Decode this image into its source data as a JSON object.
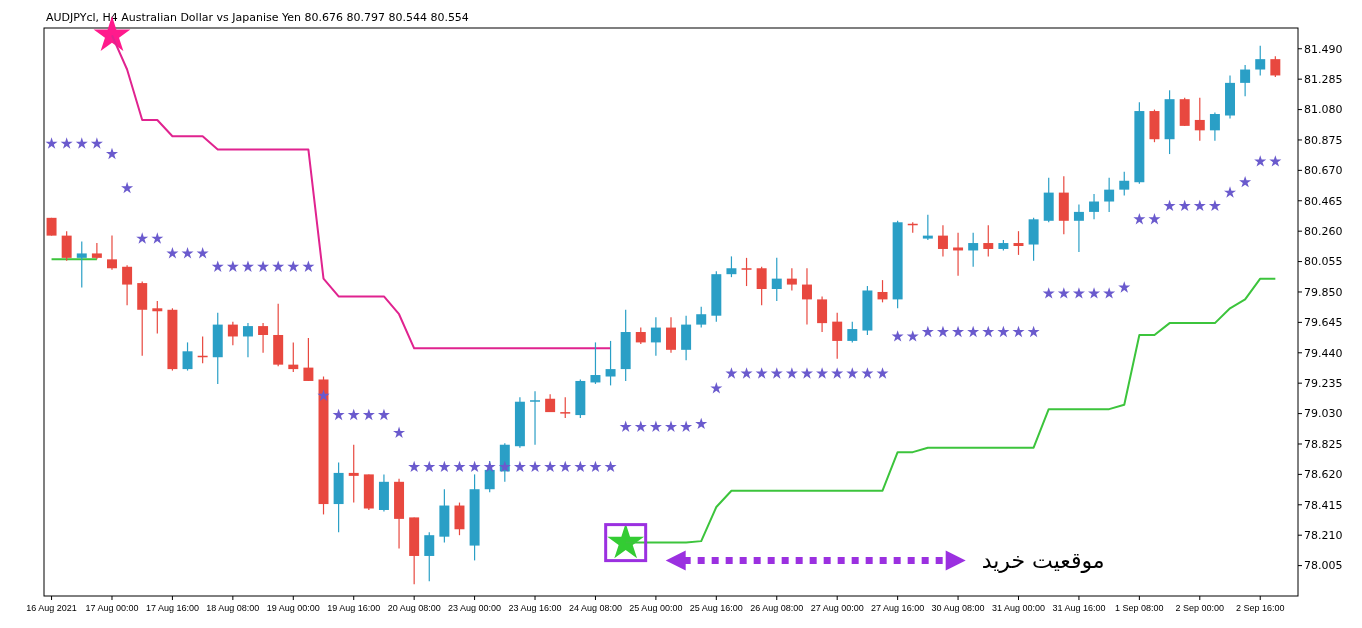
{
  "chart_data": {
    "type": "candlestick",
    "title": "AUDJPYcl, H4  Australian Dollar vs Japanise Yen  80.676 80.797 80.544 80.554",
    "annotations": [
      "موقعیت خرید"
    ],
    "categories": [
      "16 Aug 2021",
      null,
      null,
      null,
      "17 Aug 00:00",
      null,
      null,
      null,
      "17 Aug 16:00",
      null,
      null,
      null,
      "18 Aug 08:00",
      null,
      null,
      null,
      "19 Aug 00:00",
      null,
      null,
      null,
      "19 Aug 16:00",
      null,
      null,
      null,
      "20 Aug 08:00",
      null,
      null,
      null,
      "23 Aug 00:00",
      null,
      null,
      null,
      "23 Aug 16:00",
      null,
      null,
      null,
      "24 Aug 08:00",
      null,
      null,
      null,
      "25 Aug 00:00",
      null,
      null,
      null,
      "25 Aug 16:00",
      null,
      null,
      null,
      "26 Aug 08:00",
      null,
      null,
      null,
      "27 Aug 00:00",
      null,
      null,
      null,
      "27 Aug 16:00",
      null,
      null,
      null,
      "30 Aug 08:00",
      null,
      null,
      null,
      "31 Aug 00:00",
      null,
      null,
      null,
      "31 Aug 16:00",
      null,
      null,
      null,
      "1 Sep 08:00",
      null,
      null,
      null,
      "2 Sep 00:00",
      null,
      null,
      null,
      "2 Sep 16:00",
      null
    ],
    "ohlc": [
      [
        80.35,
        80.35,
        80.23,
        80.23
      ],
      [
        80.23,
        80.26,
        80.06,
        80.08
      ],
      [
        80.08,
        80.19,
        79.88,
        80.11
      ],
      [
        80.11,
        80.18,
        80.07,
        80.08
      ],
      [
        80.07,
        80.23,
        80.0,
        80.01
      ],
      [
        80.02,
        80.03,
        79.76,
        79.9
      ],
      [
        79.91,
        79.92,
        79.42,
        79.73
      ],
      [
        79.74,
        79.79,
        79.57,
        79.72
      ],
      [
        79.73,
        79.74,
        79.32,
        79.33
      ],
      [
        79.33,
        79.51,
        79.32,
        79.45
      ],
      [
        79.42,
        79.55,
        79.37,
        79.41
      ],
      [
        79.41,
        79.71,
        79.23,
        79.63
      ],
      [
        79.63,
        79.65,
        79.49,
        79.55
      ],
      [
        79.55,
        79.64,
        79.41,
        79.62
      ],
      [
        79.62,
        79.64,
        79.44,
        79.56
      ],
      [
        79.56,
        79.77,
        79.35,
        79.36
      ],
      [
        79.36,
        79.51,
        79.31,
        79.33
      ],
      [
        79.34,
        79.54,
        79.25,
        79.25
      ],
      [
        79.26,
        79.28,
        78.35,
        78.42
      ],
      [
        78.42,
        78.7,
        78.23,
        78.63
      ],
      [
        78.63,
        78.82,
        78.43,
        78.61
      ],
      [
        78.62,
        78.62,
        78.38,
        78.39
      ],
      [
        78.38,
        78.62,
        78.37,
        78.57
      ],
      [
        78.57,
        78.59,
        78.12,
        78.32
      ],
      [
        78.33,
        78.33,
        77.88,
        78.07
      ],
      [
        78.07,
        78.23,
        77.9,
        78.21
      ],
      [
        78.2,
        78.52,
        78.16,
        78.41
      ],
      [
        78.41,
        78.43,
        78.21,
        78.25
      ],
      [
        78.14,
        78.62,
        78.04,
        78.52
      ],
      [
        78.52,
        78.71,
        78.5,
        78.65
      ],
      [
        78.64,
        78.83,
        78.57,
        78.82
      ],
      [
        78.81,
        79.14,
        78.8,
        79.11
      ],
      [
        79.11,
        79.18,
        78.82,
        79.12
      ],
      [
        79.13,
        79.16,
        79.04,
        79.04
      ],
      [
        79.04,
        79.14,
        79.0,
        79.03
      ],
      [
        79.02,
        79.26,
        79.0,
        79.25
      ],
      [
        79.24,
        79.51,
        79.23,
        79.29
      ],
      [
        79.28,
        79.52,
        79.22,
        79.33
      ],
      [
        79.33,
        79.73,
        79.25,
        79.58
      ],
      [
        79.58,
        79.61,
        79.5,
        79.51
      ],
      [
        79.51,
        79.68,
        79.42,
        79.61
      ],
      [
        79.61,
        79.68,
        79.44,
        79.46
      ],
      [
        79.46,
        79.69,
        79.39,
        79.63
      ],
      [
        79.63,
        79.75,
        79.61,
        79.7
      ],
      [
        79.69,
        79.99,
        79.65,
        79.97
      ],
      [
        79.97,
        80.09,
        79.95,
        80.01
      ],
      [
        80.01,
        80.08,
        79.89,
        80.0
      ],
      [
        80.01,
        80.02,
        79.76,
        79.87
      ],
      [
        79.87,
        80.08,
        79.79,
        79.94
      ],
      [
        79.94,
        80.01,
        79.86,
        79.9
      ],
      [
        79.9,
        80.01,
        79.63,
        79.8
      ],
      [
        79.8,
        79.82,
        79.58,
        79.64
      ],
      [
        79.65,
        79.71,
        79.4,
        79.52
      ],
      [
        79.52,
        79.65,
        79.51,
        79.6
      ],
      [
        79.59,
        79.89,
        79.56,
        79.86
      ],
      [
        79.85,
        79.93,
        79.78,
        79.8
      ],
      [
        79.8,
        80.33,
        79.74,
        80.32
      ],
      [
        80.31,
        80.32,
        80.25,
        80.3
      ],
      [
        80.21,
        80.37,
        80.2,
        80.23
      ],
      [
        80.23,
        80.3,
        80.09,
        80.14
      ],
      [
        80.15,
        80.25,
        79.96,
        80.13
      ],
      [
        80.13,
        80.25,
        80.02,
        80.18
      ],
      [
        80.18,
        80.3,
        80.09,
        80.14
      ],
      [
        80.14,
        80.2,
        80.13,
        80.18
      ],
      [
        80.18,
        80.26,
        80.1,
        80.16
      ],
      [
        80.17,
        80.35,
        80.06,
        80.34
      ],
      [
        80.33,
        80.62,
        80.32,
        80.52
      ],
      [
        80.52,
        80.63,
        80.24,
        80.33
      ],
      [
        80.33,
        80.44,
        80.12,
        80.39
      ],
      [
        80.39,
        80.51,
        80.34,
        80.46
      ],
      [
        80.46,
        80.62,
        80.39,
        80.54
      ],
      [
        80.54,
        80.66,
        80.5,
        80.6
      ],
      [
        80.59,
        81.13,
        80.58,
        81.07
      ],
      [
        81.07,
        81.08,
        80.86,
        80.88
      ],
      [
        80.88,
        81.21,
        80.78,
        81.15
      ],
      [
        81.15,
        81.16,
        80.97,
        80.97
      ],
      [
        81.01,
        81.16,
        80.87,
        80.94
      ],
      [
        80.94,
        81.06,
        80.87,
        81.05
      ],
      [
        81.04,
        81.31,
        81.02,
        81.26
      ],
      [
        81.26,
        81.38,
        81.17,
        81.35
      ],
      [
        81.35,
        81.51,
        81.31,
        81.42
      ],
      [
        81.42,
        81.44,
        81.3,
        81.31
      ]
    ],
    "colors": [
      "#e8483f",
      "#e8483f",
      "#2a9fc6",
      "#e8483f",
      "#e8483f",
      "#e8483f",
      "#e8483f",
      "#e8483f",
      "#e8483f",
      "#2a9fc6",
      "#e8483f",
      "#2a9fc6",
      "#e8483f",
      "#2a9fc6",
      "#e8483f",
      "#e8483f",
      "#e8483f",
      "#e8483f",
      "#e8483f",
      "#2a9fc6",
      "#e8483f",
      "#e8483f",
      "#2a9fc6",
      "#e8483f",
      "#e8483f",
      "#2a9fc6",
      "#2a9fc6",
      "#e8483f",
      "#2a9fc6",
      "#2a9fc6",
      "#2a9fc6",
      "#2a9fc6",
      "#2a9fc6",
      "#e8483f",
      "#e8483f",
      "#2a9fc6",
      "#2a9fc6",
      "#2a9fc6",
      "#2a9fc6",
      "#e8483f",
      "#2a9fc6",
      "#e8483f",
      "#2a9fc6",
      "#2a9fc6",
      "#2a9fc6",
      "#2a9fc6",
      "#e8483f",
      "#e8483f",
      "#2a9fc6",
      "#e8483f",
      "#e8483f",
      "#e8483f",
      "#e8483f",
      "#2a9fc6",
      "#2a9fc6",
      "#e8483f",
      "#2a9fc6",
      "#e8483f",
      "#2a9fc6",
      "#e8483f",
      "#e8483f",
      "#2a9fc6",
      "#e8483f",
      "#2a9fc6",
      "#e8483f",
      "#2a9fc6",
      "#2a9fc6",
      "#e8483f",
      "#2a9fc6",
      "#2a9fc6",
      "#2a9fc6",
      "#2a9fc6",
      "#2a9fc6",
      "#e8483f",
      "#2a9fc6",
      "#e8483f",
      "#e8483f",
      "#2a9fc6",
      "#2a9fc6",
      "#2a9fc6",
      "#2a9fc6",
      "#e8483f"
    ],
    "series": [
      {
        "type": "line",
        "color": "#e0238f",
        "values": [
          null,
          null,
          null,
          null,
          81.58,
          81.35,
          81.01,
          81.01,
          80.9,
          80.9,
          80.9,
          80.81,
          80.81,
          80.81,
          80.81,
          80.81,
          80.81,
          80.81,
          79.94,
          79.82,
          79.82,
          79.82,
          79.82,
          79.7,
          79.47,
          79.47,
          79.47,
          79.47,
          79.47,
          79.47,
          79.47,
          79.47,
          79.47,
          79.47,
          79.47,
          79.47,
          79.47,
          79.47,
          null,
          null,
          null,
          null,
          null,
          null,
          null,
          null,
          null,
          null,
          null,
          null,
          null,
          null,
          null,
          null,
          null,
          null,
          null,
          null,
          null,
          null,
          null,
          null,
          null,
          null,
          null,
          null,
          null,
          null,
          null,
          null,
          null,
          null,
          null,
          null,
          null,
          null,
          null,
          null,
          null,
          null,
          null,
          null
        ]
      },
      {
        "type": "line",
        "color": "#3cc43c",
        "values": [
          80.07,
          80.07,
          80.07,
          80.07,
          null,
          null,
          null,
          null,
          null,
          null,
          null,
          null,
          null,
          null,
          null,
          null,
          null,
          null,
          null,
          null,
          null,
          null,
          null,
          null,
          null,
          null,
          null,
          null,
          null,
          null,
          null,
          null,
          null,
          null,
          null,
          null,
          null,
          null,
          78.16,
          78.16,
          78.16,
          78.16,
          78.16,
          78.17,
          78.4,
          78.51,
          78.51,
          78.51,
          78.51,
          78.51,
          78.51,
          78.51,
          78.51,
          78.51,
          78.51,
          78.51,
          78.77,
          78.77,
          78.8,
          78.8,
          78.8,
          78.8,
          78.8,
          78.8,
          78.8,
          78.8,
          79.06,
          79.06,
          79.06,
          79.06,
          79.06,
          79.09,
          79.56,
          79.56,
          79.64,
          79.64,
          79.64,
          79.64,
          79.74,
          79.8,
          79.94,
          79.94
        ]
      },
      {
        "type": "scatter",
        "marker": "star",
        "color": "#6a5acd",
        "values": [
          80.85,
          80.85,
          80.85,
          80.85,
          80.78,
          80.55,
          80.21,
          80.21,
          80.11,
          80.11,
          80.11,
          80.02,
          80.02,
          80.02,
          80.02,
          80.02,
          80.02,
          80.02,
          79.15,
          79.02,
          79.02,
          79.02,
          79.02,
          78.9,
          78.67,
          78.67,
          78.67,
          78.67,
          78.67,
          78.67,
          78.67,
          78.67,
          78.67,
          78.67,
          78.67,
          78.67,
          78.67,
          78.67,
          78.94,
          78.94,
          78.94,
          78.94,
          78.94,
          78.96,
          79.2,
          79.3,
          79.3,
          79.3,
          79.3,
          79.3,
          79.3,
          79.3,
          79.3,
          79.3,
          79.3,
          79.3,
          79.55,
          79.55,
          79.58,
          79.58,
          79.58,
          79.58,
          79.58,
          79.58,
          79.58,
          79.58,
          79.84,
          79.84,
          79.84,
          79.84,
          79.84,
          79.88,
          80.34,
          80.34,
          80.43,
          80.43,
          80.43,
          80.43,
          80.52,
          80.59,
          80.73,
          80.73
        ]
      },
      {
        "type": "scatter",
        "marker": "star",
        "color": "#ff1a8c",
        "values": [
          null,
          null,
          null,
          null,
          81.58,
          null,
          null,
          null,
          null,
          null,
          null,
          null,
          null,
          null,
          null,
          null,
          null,
          null,
          null,
          null,
          null,
          null,
          null,
          null,
          null,
          null,
          null,
          null,
          null,
          null,
          null,
          null,
          null,
          null,
          null,
          null,
          null,
          null,
          null,
          null,
          null,
          null,
          null,
          null,
          null,
          null,
          null,
          null,
          null,
          null,
          null,
          null,
          null,
          null,
          null,
          null,
          null,
          null,
          null,
          null,
          null,
          null,
          null,
          null,
          null,
          null,
          null,
          null,
          null,
          null,
          null,
          null,
          null,
          null,
          null,
          null,
          null,
          null,
          null,
          null,
          null,
          null
        ]
      },
      {
        "type": "scatter",
        "marker": "star",
        "color": "#33cc33",
        "values": [
          null,
          null,
          null,
          null,
          null,
          null,
          null,
          null,
          null,
          null,
          null,
          null,
          null,
          null,
          null,
          null,
          null,
          null,
          null,
          null,
          null,
          null,
          null,
          null,
          null,
          null,
          null,
          null,
          null,
          null,
          null,
          null,
          null,
          null,
          null,
          null,
          null,
          null,
          78.16,
          null,
          null,
          null,
          null,
          null,
          null,
          null,
          null,
          null,
          null,
          null,
          null,
          null,
          null,
          null,
          null,
          null,
          null,
          null,
          null,
          null,
          null,
          null,
          null,
          null,
          null,
          null,
          null,
          null,
          null,
          null,
          null,
          null,
          null,
          null,
          null,
          null,
          null,
          null,
          null,
          null,
          null,
          null
        ]
      }
    ],
    "ylim": [
      77.8,
      81.63
    ],
    "yticks": [
      78.005,
      {
        "value": 78.21,
        "label": "78.210"
      },
      78.415,
      {
        "value": 78.62,
        "label": "78.620"
      },
      78.825,
      {
        "value": 79.03,
        "label": "79.030"
      },
      79.235,
      {
        "value": 79.44,
        "label": "79.440"
      },
      79.645,
      {
        "value": 79.85,
        "label": "79.850"
      },
      80.055,
      {
        "value": 80.26,
        "label": "80.260"
      },
      80.465,
      {
        "value": 80.67,
        "label": "80.670"
      },
      80.875,
      {
        "value": 81.08,
        "label": "81.080"
      },
      81.285,
      {
        "value": 81.49,
        "label": "81.490"
      }
    ]
  }
}
